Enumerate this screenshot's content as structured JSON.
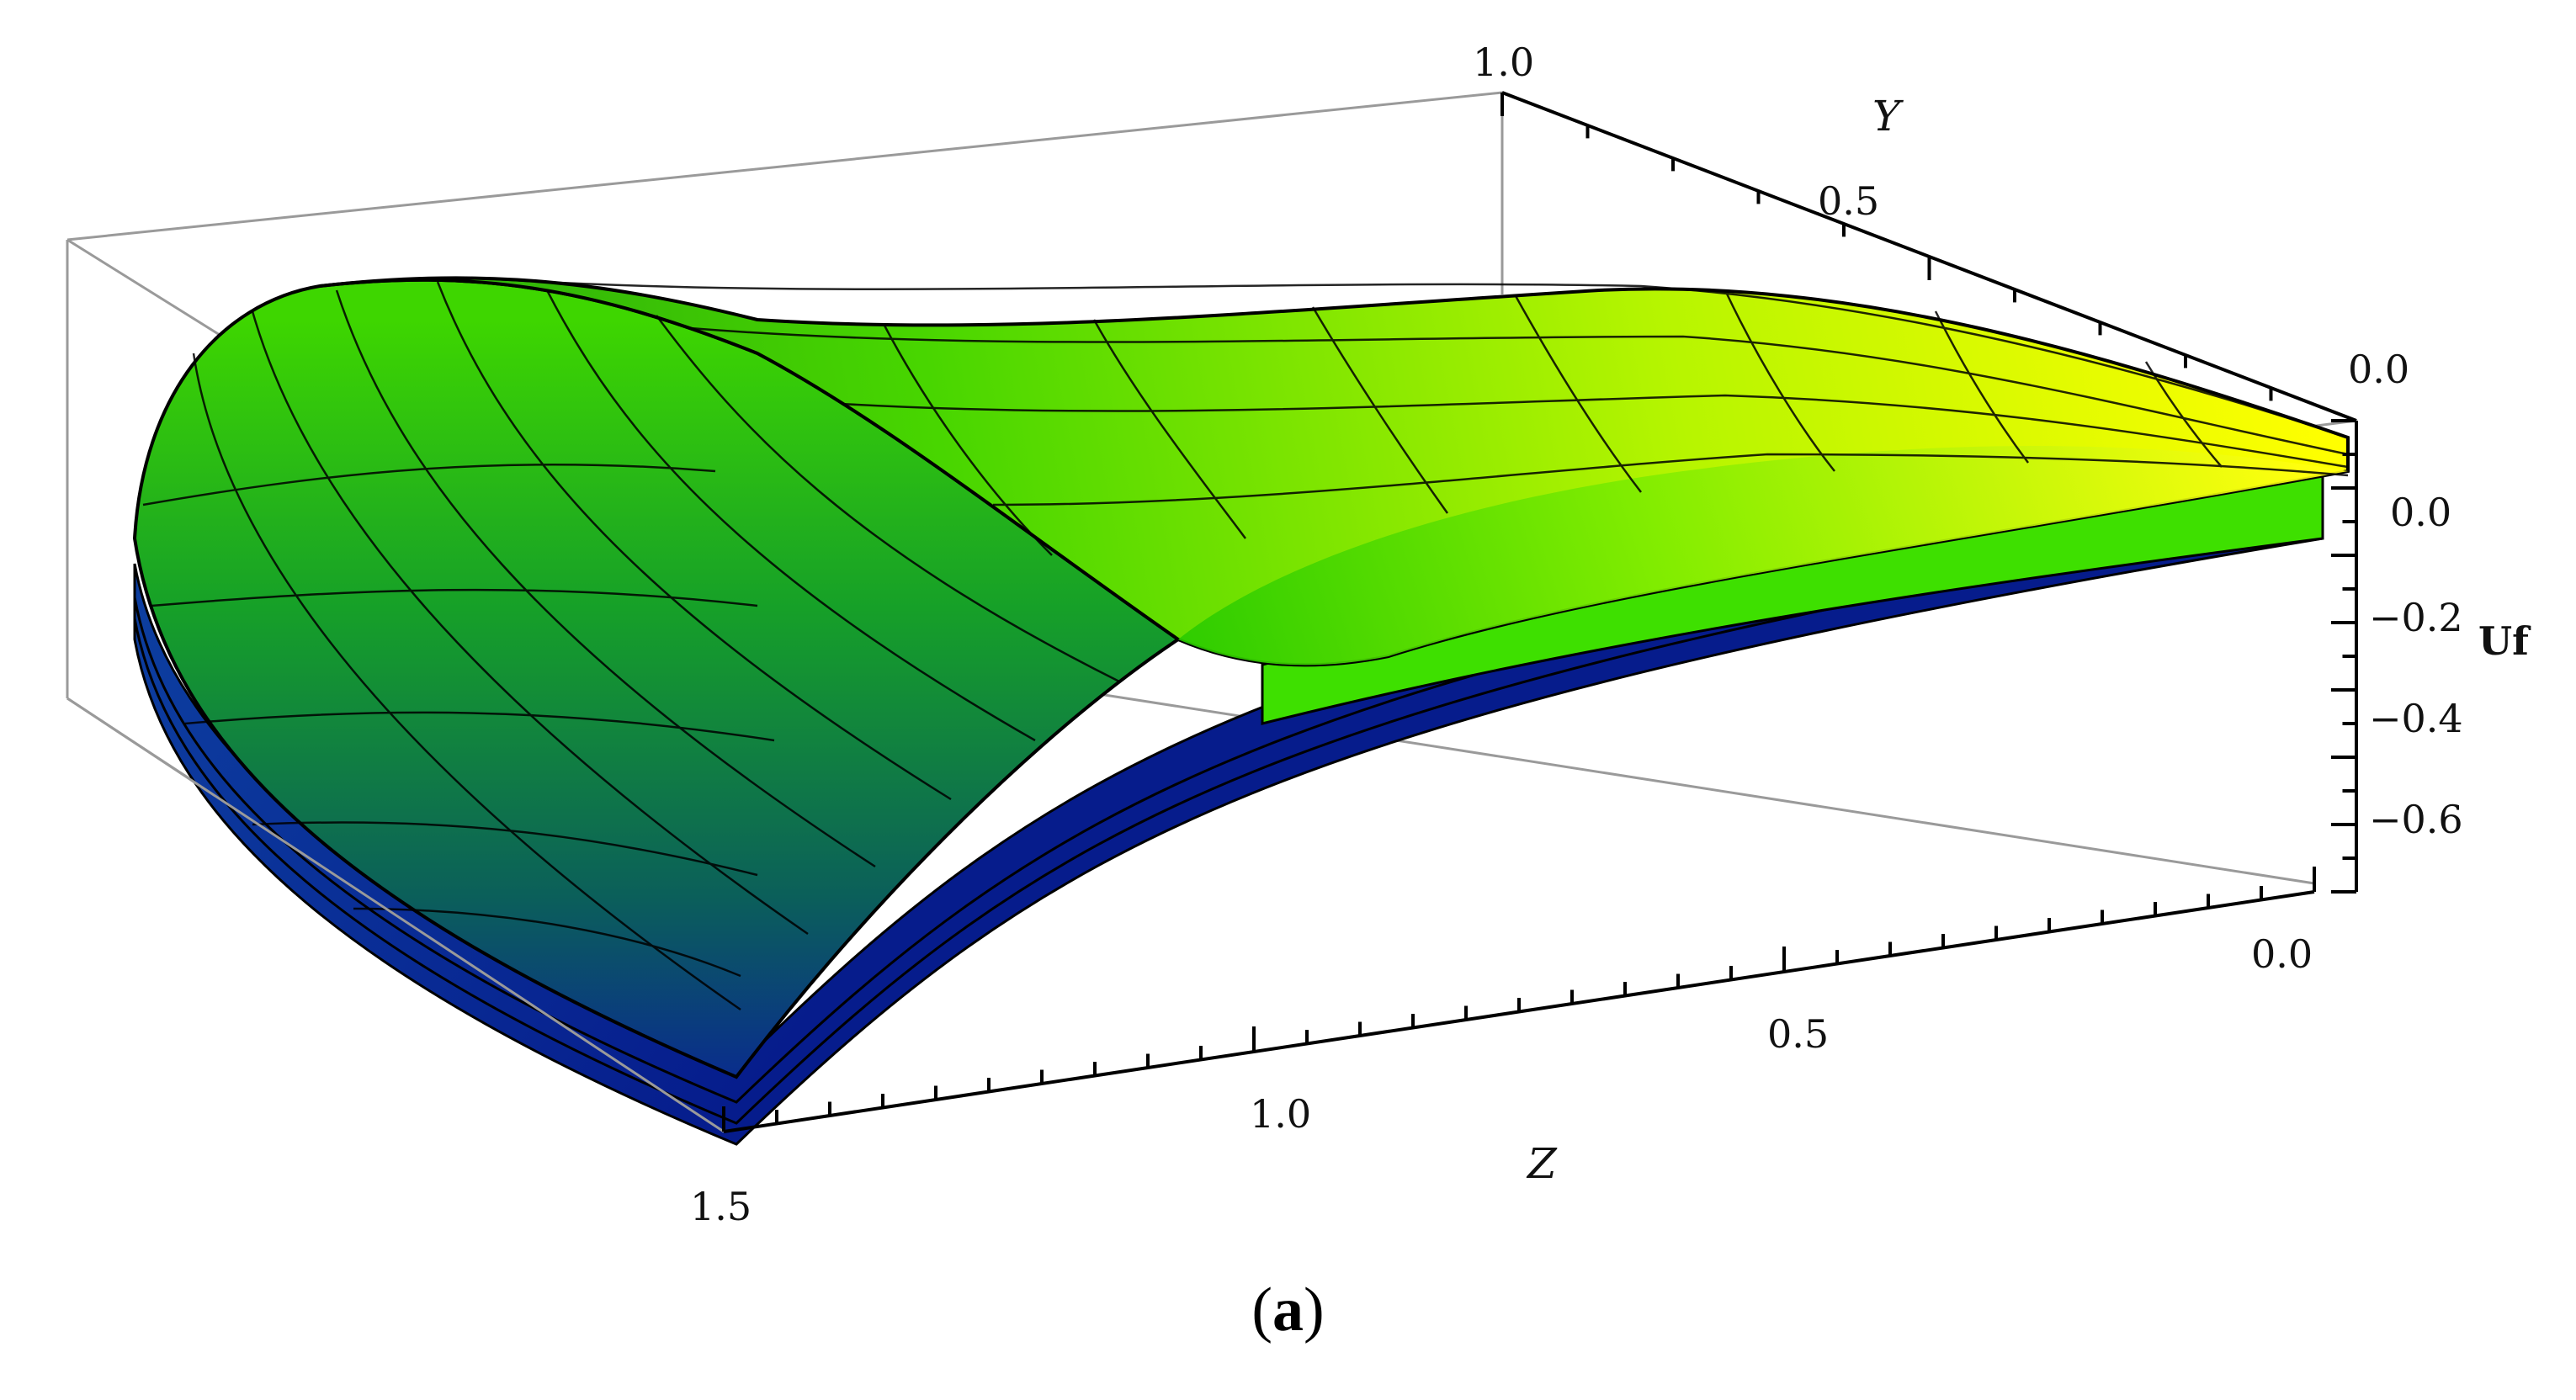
{
  "chart_data": {
    "type": "surface3d",
    "axes": {
      "y": {
        "label": "Y",
        "range": [
          0.0,
          1.0
        ],
        "ticks": [
          "1.0",
          "0.5",
          "0.0"
        ]
      },
      "z": {
        "label": "Z",
        "range": [
          0.0,
          1.5
        ],
        "ticks": [
          "1.5",
          "1.0",
          "0.5",
          "0.0"
        ]
      },
      "uf": {
        "label": "Uf",
        "ticks": [
          "0.0",
          "−0.2",
          "−0.4",
          "−0.6"
        ]
      }
    },
    "surface_count": 4,
    "colors": {
      "high": "#ffff00",
      "mid": "#33dd00",
      "low": "#0000aa",
      "box": "#999999",
      "mesh": "#000000"
    }
  },
  "caption": {
    "open": "(",
    "letter": "a",
    "close": ")"
  }
}
